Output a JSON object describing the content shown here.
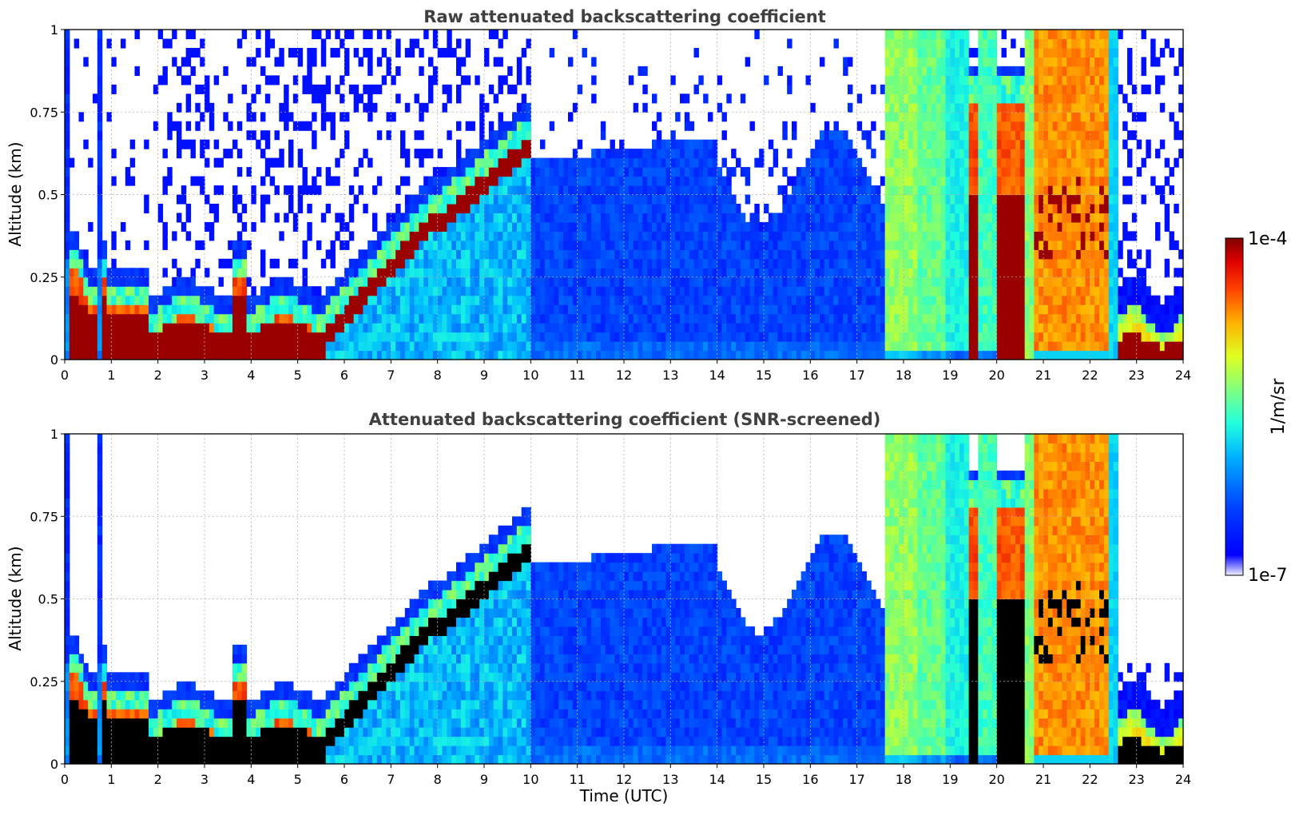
{
  "chart_data": [
    {
      "type": "heatmap",
      "title": "Raw attenuated backscattering coefficient",
      "xlabel": "",
      "ylabel": "Altitude (km)",
      "xlim": [
        0,
        24
      ],
      "ylim": [
        0,
        1
      ],
      "xticks": [
        "0",
        "1",
        "2",
        "3",
        "4",
        "5",
        "6",
        "7",
        "8",
        "9",
        "10",
        "11",
        "12",
        "13",
        "14",
        "15",
        "16",
        "17",
        "18",
        "19",
        "20",
        "21",
        "22",
        "23",
        "24"
      ],
      "yticks": [
        "0",
        "0.25",
        "0.5",
        "0.75",
        "1"
      ],
      "grid": true,
      "screened": false
    },
    {
      "type": "heatmap",
      "title": "Attenuated backscattering coefficient (SNR-screened)",
      "xlabel": "Time (UTC)",
      "ylabel": "Altitude (km)",
      "xlim": [
        0,
        24
      ],
      "ylim": [
        0,
        1
      ],
      "xticks": [
        "0",
        "1",
        "2",
        "3",
        "4",
        "5",
        "6",
        "7",
        "8",
        "9",
        "10",
        "11",
        "12",
        "13",
        "14",
        "15",
        "16",
        "17",
        "18",
        "19",
        "20",
        "21",
        "22",
        "23",
        "24"
      ],
      "yticks": [
        "0",
        "0.25",
        "0.5",
        "0.75",
        "1"
      ],
      "grid": true,
      "screened": true
    }
  ],
  "colorbar": {
    "label": "1/m/sr",
    "max_label": "1e-4",
    "min_label": "1e-7",
    "colormap": "jet"
  }
}
